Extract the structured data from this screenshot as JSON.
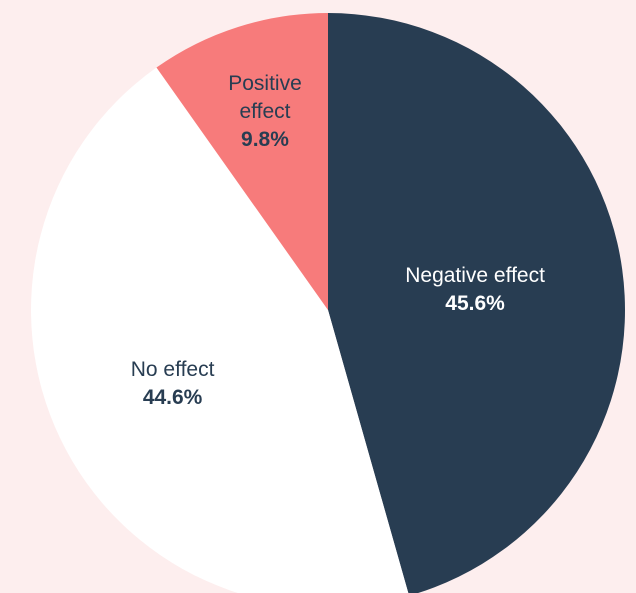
{
  "chart_data": {
    "type": "pie",
    "categories": [
      "Negative effect",
      "No effect",
      "Positive effect"
    ],
    "values": [
      45.6,
      44.6,
      9.8
    ],
    "value_labels": [
      "45.6%",
      "44.6%",
      "9.8%"
    ],
    "colors": [
      "#283d52",
      "#ffffff",
      "#f77b7b"
    ]
  }
}
